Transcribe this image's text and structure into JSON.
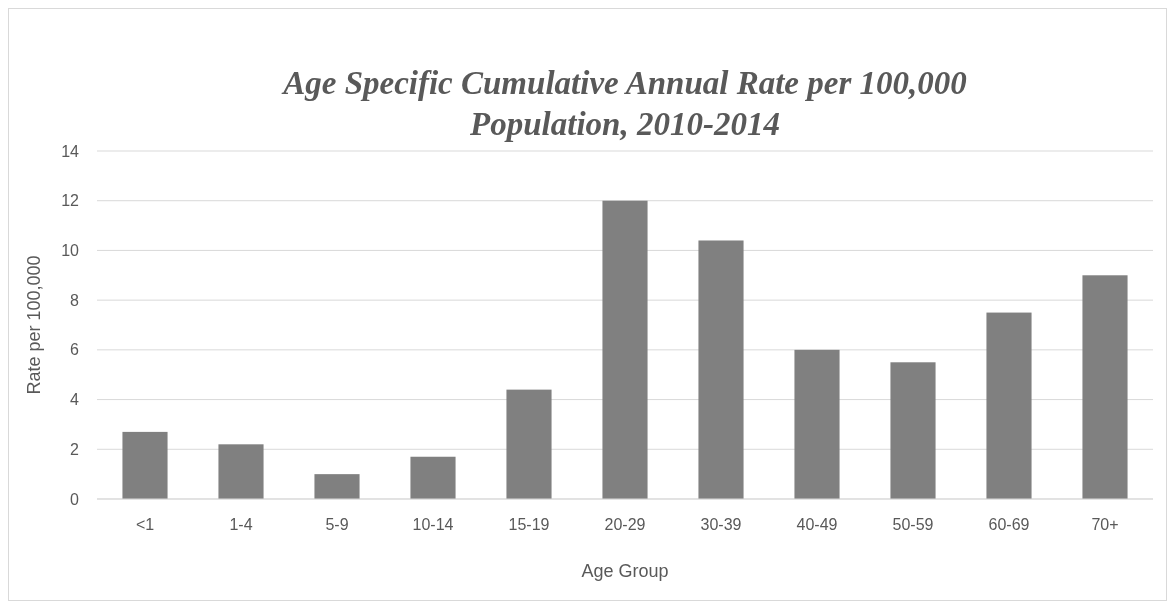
{
  "chart_data": {
    "type": "bar",
    "title": "Age Specific Cumulative Annual Rate per 100,000 Population, 2010-2014",
    "xlabel": "Age Group",
    "ylabel": "Rate per 100,000",
    "categories": [
      "<1",
      "1-4",
      "5-9",
      "10-14",
      "15-19",
      "20-29",
      "30-39",
      "40-49",
      "50-59",
      "60-69",
      "70+"
    ],
    "values": [
      2.7,
      2.2,
      1.0,
      1.7,
      4.4,
      12.0,
      10.4,
      6.0,
      5.5,
      7.5,
      9.0
    ],
    "color": "#808080",
    "ylim": [
      0,
      14
    ],
    "yticks": [
      0,
      2,
      4,
      6,
      8,
      10,
      12,
      14
    ],
    "grid": "y"
  }
}
